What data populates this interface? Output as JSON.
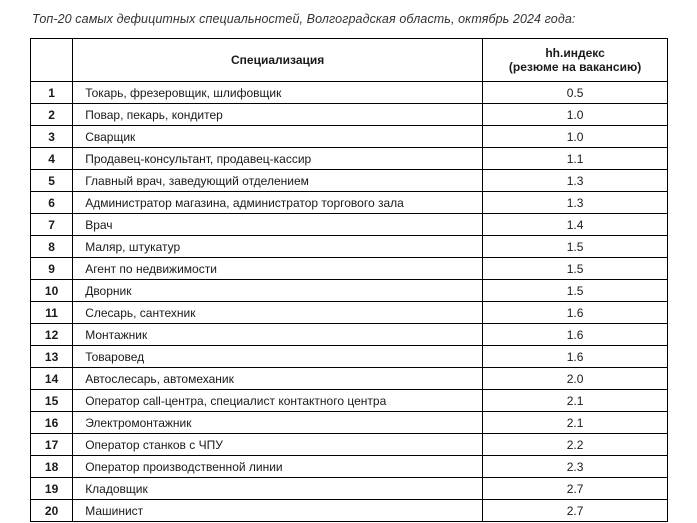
{
  "title": "Топ-20 самых дефицитных специальностей, Волгоградская область, октябрь 2024 года:",
  "table": {
    "headers": {
      "num": "",
      "spec": "Специализация",
      "index_line1": "hh.индекс",
      "index_line2": "(резюме на вакансию)"
    },
    "rows": [
      {
        "num": "1",
        "spec": "Токарь, фрезеровщик, шлифовщик",
        "index": "0.5"
      },
      {
        "num": "2",
        "spec": "Повар, пекарь, кондитер",
        "index": "1.0"
      },
      {
        "num": "3",
        "spec": "Сварщик",
        "index": "1.0"
      },
      {
        "num": "4",
        "spec": "Продавец-консультант, продавец-кассир",
        "index": "1.1"
      },
      {
        "num": "5",
        "spec": "Главный врач, заведующий отделением",
        "index": "1.3"
      },
      {
        "num": "6",
        "spec": "Администратор магазина, администратор торгового зала",
        "index": "1.3"
      },
      {
        "num": "7",
        "spec": "Врач",
        "index": "1.4"
      },
      {
        "num": "8",
        "spec": "Маляр, штукатур",
        "index": "1.5"
      },
      {
        "num": "9",
        "spec": "Агент по недвижимости",
        "index": "1.5"
      },
      {
        "num": "10",
        "spec": "Дворник",
        "index": "1.5"
      },
      {
        "num": "11",
        "spec": "Слесарь, сантехник",
        "index": "1.6"
      },
      {
        "num": "12",
        "spec": "Монтажник",
        "index": "1.6"
      },
      {
        "num": "13",
        "spec": "Товаровед",
        "index": "1.6"
      },
      {
        "num": "14",
        "spec": "Автослесарь, автомеханик",
        "index": "2.0"
      },
      {
        "num": "15",
        "spec": "Оператор call-центра, специалист контактного центра",
        "index": "2.1"
      },
      {
        "num": "16",
        "spec": "Электромонтажник",
        "index": "2.1"
      },
      {
        "num": "17",
        "spec": "Оператор станков с ЧПУ",
        "index": "2.2"
      },
      {
        "num": "18",
        "spec": "Оператор производственной линии",
        "index": "2.3"
      },
      {
        "num": "19",
        "spec": "Кладовщик",
        "index": "2.7"
      },
      {
        "num": "20",
        "spec": "Машинист",
        "index": "2.7"
      }
    ]
  },
  "chart_data": {
    "type": "table",
    "title": "Топ-20 самых дефицитных специальностей, Волгоградская область, октябрь 2024 года",
    "columns": [
      "№",
      "Специализация",
      "hh.индекс (резюме на вакансию)"
    ],
    "rows": [
      [
        1,
        "Токарь, фрезеровщик, шлифовщик",
        0.5
      ],
      [
        2,
        "Повар, пекарь, кондитер",
        1.0
      ],
      [
        3,
        "Сварщик",
        1.0
      ],
      [
        4,
        "Продавец-консультант, продавец-кассир",
        1.1
      ],
      [
        5,
        "Главный врач, заведующий отделением",
        1.3
      ],
      [
        6,
        "Администратор магазина, администратор торгового зала",
        1.3
      ],
      [
        7,
        "Врач",
        1.4
      ],
      [
        8,
        "Маляр, штукатур",
        1.5
      ],
      [
        9,
        "Агент по недвижимости",
        1.5
      ],
      [
        10,
        "Дворник",
        1.5
      ],
      [
        11,
        "Слесарь, сантехник",
        1.6
      ],
      [
        12,
        "Монтажник",
        1.6
      ],
      [
        13,
        "Товаровед",
        1.6
      ],
      [
        14,
        "Автослесарь, автомеханик",
        2.0
      ],
      [
        15,
        "Оператор call-центра, специалист контактного центра",
        2.1
      ],
      [
        16,
        "Электромонтажник",
        2.1
      ],
      [
        17,
        "Оператор станков с ЧПУ",
        2.2
      ],
      [
        18,
        "Оператор производственной линии",
        2.3
      ],
      [
        19,
        "Кладовщик",
        2.7
      ],
      [
        20,
        "Машинист",
        2.7
      ]
    ]
  }
}
